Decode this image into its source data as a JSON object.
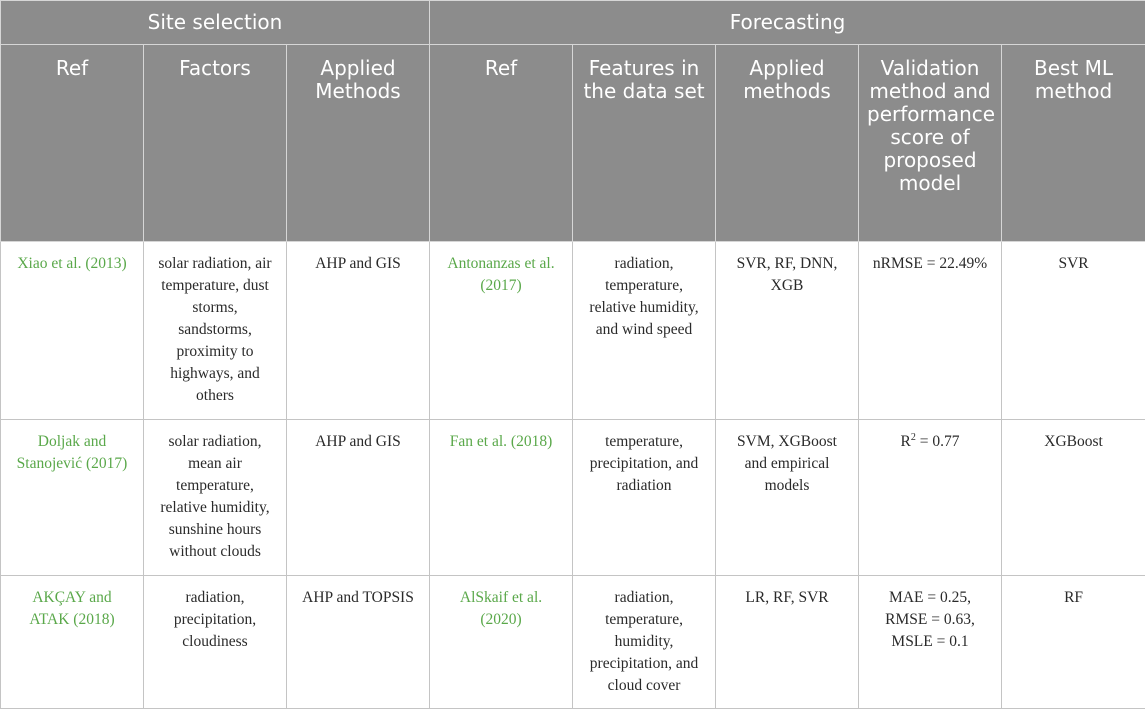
{
  "header": {
    "group_site_selection": "Site selection",
    "group_forecasting": "Forecasting",
    "columns": [
      "Ref",
      "Factors",
      "Applied Methods",
      "Ref",
      "Features in the data set",
      "Applied methods",
      "Validation method and performance score of proposed model",
      "Best ML method"
    ]
  },
  "rows": [
    {
      "site_ref": "Xiao et al. (2013)",
      "factors": "solar radiation, air temperature, dust storms, sandstorms, proximity to highways, and others",
      "site_methods": "AHP and GIS",
      "fc_ref": "Antonanzas et al. (2017)",
      "features": "radiation, temperature, relative humidity, and wind speed",
      "fc_methods": "SVR, RF, DNN, XGB",
      "validation": "nRMSE = 22.49%",
      "best": "SVR"
    },
    {
      "site_ref": "Doljak and Stanojević (2017)",
      "factors": "solar radiation, mean air temperature, relative humidity, sunshine hours without clouds",
      "site_methods": "AHP and GIS",
      "fc_ref": "Fan et al. (2018)",
      "features": "temperature, precipitation, and radiation",
      "fc_methods": "SVM, XGBoost and empirical models",
      "validation_prefix": "R",
      "validation_sup": "2",
      "validation_suffix": " = 0.77",
      "best": "XGBoost"
    },
    {
      "site_ref": "AKÇAY and ATAK (2018)",
      "factors": "radiation, precipitation, cloudiness",
      "site_methods": "AHP and TOPSIS",
      "fc_ref": "AlSkaif et al. (2020)",
      "features": "radiation, temperature, humidity, precipitation, and cloud cover",
      "fc_methods": "LR, RF, SVR",
      "validation": "MAE = 0.25, RMSE = 0.63, MSLE = 0.1",
      "best": "RF"
    }
  ]
}
